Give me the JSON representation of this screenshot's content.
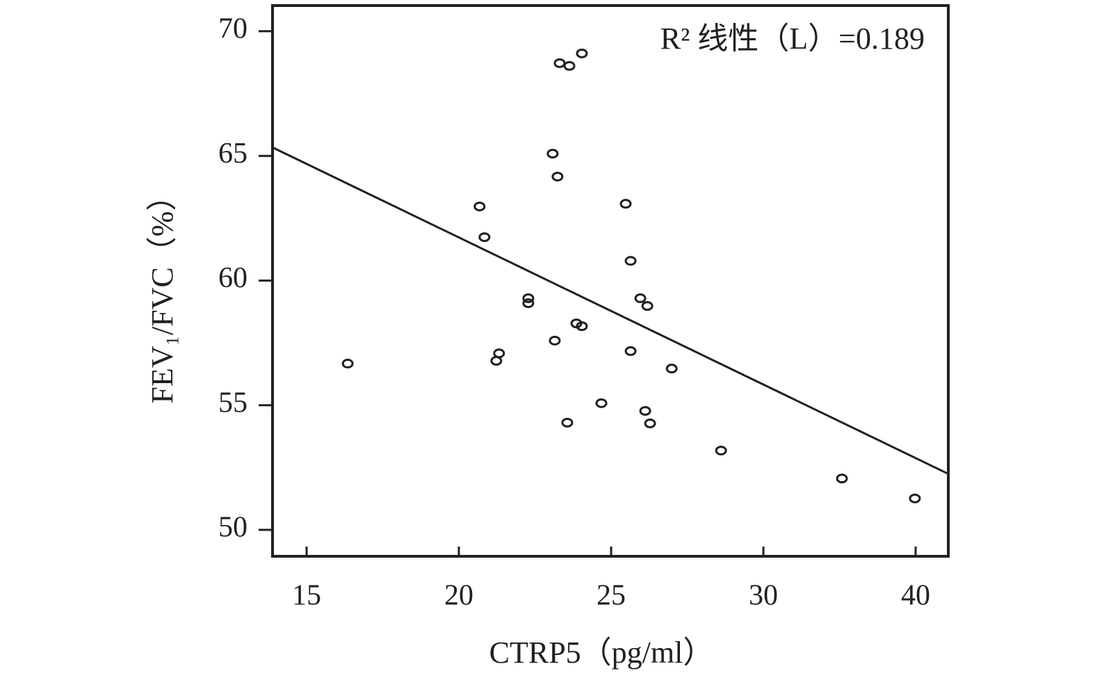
{
  "chart_data": {
    "type": "scatter",
    "xlabel": "CTRP5（pg/ml）",
    "ylabel": "FEV₁/FVC（%）",
    "annotation": "R² 线性（L）=0.189",
    "xlim": [
      13.88,
      42.2
    ],
    "ylim": [
      48.94,
      71.03
    ],
    "xticks": [
      15,
      20,
      25,
      30,
      40
    ],
    "yticks": [
      50,
      55,
      60,
      65,
      70
    ],
    "color": "#231f20",
    "x": [
      16.35,
      20.68,
      20.84,
      21.32,
      21.23,
      22.28,
      22.28,
      23.08,
      23.24,
      23.15,
      23.31,
      23.63,
      24.04,
      23.56,
      23.86,
      24.04,
      24.68,
      25.48,
      25.64,
      25.64,
      25.96,
      26.19,
      26.12,
      26.28,
      26.99,
      28.61,
      35.16,
      39.95
    ],
    "values": [
      56.67,
      62.97,
      61.74,
      57.08,
      56.78,
      59.29,
      59.09,
      65.09,
      64.17,
      57.59,
      68.72,
      68.61,
      69.11,
      54.3,
      58.28,
      58.17,
      55.08,
      63.08,
      60.79,
      57.17,
      59.29,
      58.98,
      54.77,
      54.27,
      56.47,
      53.18,
      52.06,
      51.26
    ],
    "fit_line": {
      "x": [
        13.88,
        42.2
      ],
      "y": [
        65.34,
        52.23
      ]
    }
  }
}
